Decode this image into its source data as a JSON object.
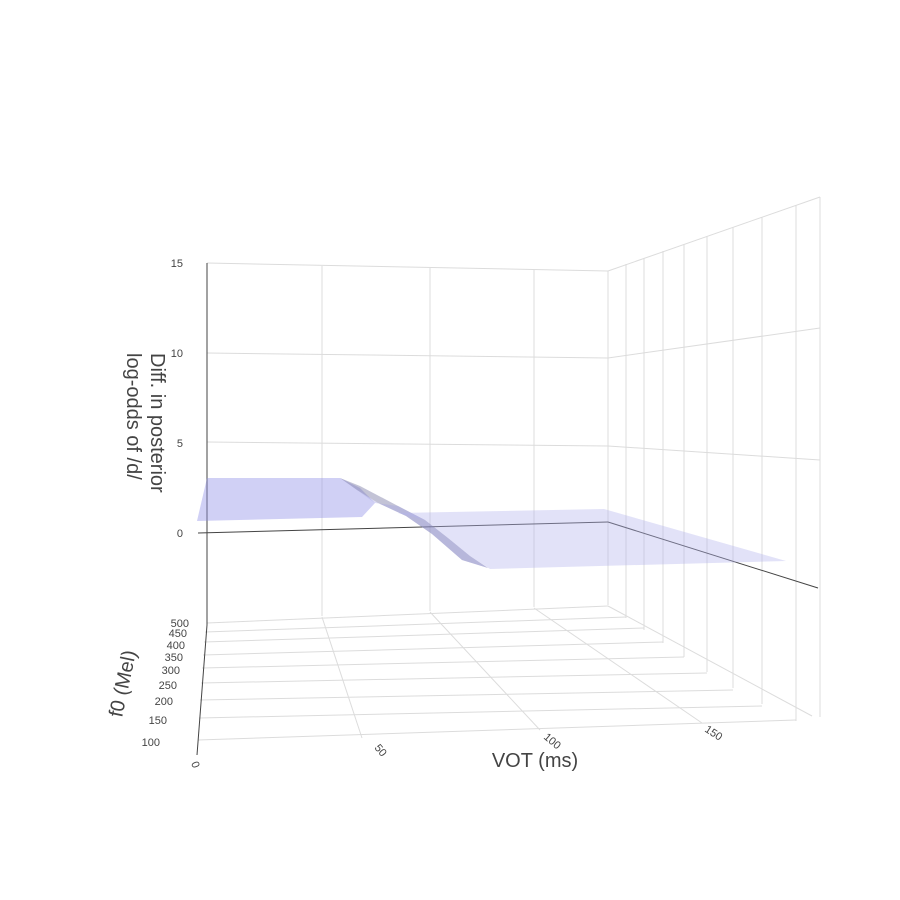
{
  "chart_data": {
    "type": "surface",
    "title": "",
    "x_axis": {
      "label": "VOT (ms)",
      "ticks": [
        0,
        50,
        100,
        150
      ],
      "range": [
        0,
        180
      ]
    },
    "y_axis": {
      "label": "f0 (Mel)",
      "ticks": [
        100,
        150,
        200,
        250,
        300,
        350,
        400,
        450,
        500
      ],
      "range": [
        80,
        500
      ]
    },
    "z_axis": {
      "label_line1": "Diff. in posterior",
      "label_line2": "log-odds of /d/",
      "ticks": [
        0,
        5,
        10,
        15
      ],
      "range": [
        -6,
        15
      ]
    },
    "grid": true,
    "surface": {
      "color": "#8f8fe6",
      "description_values": {
        "vot": [
          0,
          20,
          40,
          60,
          80,
          100,
          120,
          140,
          160,
          180
        ],
        "diff_log_odds": [
          2.8,
          2.8,
          2.8,
          1.2,
          -1.4,
          -2.2,
          -2.2,
          -2.2,
          -2.2,
          -2.2
        ]
      }
    }
  }
}
